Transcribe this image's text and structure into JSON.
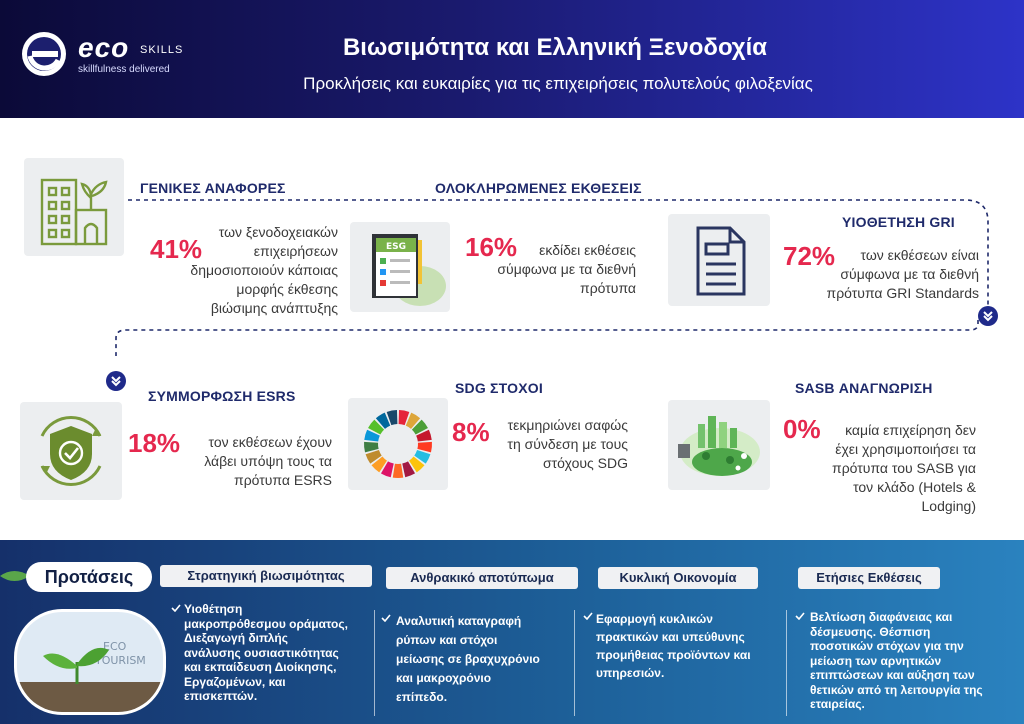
{
  "header": {
    "logo_eco": "eco",
    "logo_skills": "SKILLS",
    "logo_tag": "skillfulness delivered",
    "title": "Βιωσιμότητα και Ελληνική Ξενοδοχία",
    "subtitle": "Προκλήσεις και ευκαιρίες για τις επιχειρήσεις πολυτελούς φιλοξενίας"
  },
  "stats": {
    "general": {
      "title": "ΓΕΝΙΚΕΣ ΑΝΑΦΟΡΕΣ",
      "pct": "41%",
      "lines": [
        "των ξενοδοχειακών",
        "επιχειρήσεων",
        "δημοσιοποιούν κάποιας",
        "μορφής έκθεσης",
        "βιώσιμης ανάπτυξης"
      ],
      "icon": "building-plant-icon"
    },
    "complete": {
      "title": "ΟΛΟΚΛΗΡΩΜΕΝΕΣ ΕΚΘΕΣΕΙΣ",
      "pct": "16%",
      "lines": [
        "εκδίδει εκθέσεις",
        "σύμφωνα με τα διεθνή",
        "πρότυπα"
      ],
      "icon": "esg-report-icon",
      "icon_label": "ESG"
    },
    "gri": {
      "title": "ΥΙΟΘΕΤΗΣΗ GRI",
      "pct": "72%",
      "lines": [
        "των εκθέσεων είναι",
        "σύμφωνα με τα διεθνή",
        "πρότυπα GRI Standards"
      ],
      "icon": "document-icon"
    },
    "esrs": {
      "title": "ΣΥΜΜΟΡΦΩΣΗ ESRS",
      "pct": "18%",
      "lines": [
        "τον εκθέσεων έχουν",
        "λάβει υπόψη τους τα",
        "πρότυπα ESRS"
      ],
      "icon": "shield-check-icon"
    },
    "sdg": {
      "title": "SDG ΣΤΟΧΟΙ",
      "pct": "8%",
      "lines": [
        "τεκμηριώνει σαφώς",
        "τη σύνδεση με τους",
        "στόχους SDG"
      ],
      "icon": "sdg-wheel-icon"
    },
    "sasb": {
      "title": "SASB ΑΝΑΓΝΩΡΙΣΗ",
      "pct": "0%",
      "lines": [
        "καμία επιχείρηση δεν",
        "έχει χρησιμοποιήσει τα",
        "πρότυπα του SASB για",
        "τον κλάδο (Hotels &",
        "Lodging)"
      ],
      "icon": "green-city-bulb-icon"
    }
  },
  "recommendations": {
    "label": "Προτάσεις",
    "photo_text": [
      "ECO",
      "TOURISM"
    ],
    "columns": [
      {
        "title": "Στρατηγική βιωσιμότητας",
        "lines": [
          "Υιοθέτηση",
          "μακροπρόθεσμου οράματος,",
          "Διεξαγωγή  διπλής",
          "ανάλυσης ουσιαστικότητας",
          "και  εκπαίδευση Διοίκησης,",
          "Εργαζομένων, και",
          "επισκεπτών."
        ]
      },
      {
        "title": "Ανθρακικό αποτύπωμα",
        "lines": [
          "Αναλυτική καταγραφή",
          "ρύπων και στόχοι",
          "μείωσης σε βραχυχρόνιο",
          "και μακροχρόνιο",
          "επίπεδο."
        ]
      },
      {
        "title": "Κυκλική Οικονομία",
        "lines": [
          "Εφαρμογή κυκλικών",
          "πρακτικών και υπεύθυνης",
          "προμήθειας προϊόντων και",
          "υπηρεσιών."
        ]
      },
      {
        "title": "Ετήσιες Εκθέσεις",
        "lines": [
          "Βελτίωση  διαφάνειας και",
          "δέσμευσης. Θέσπιση",
          "ποσοτικών στόχων για την",
          "μείωση των αρνητικών",
          "επιπτώσεων και  αύξηση των",
          "θετικών από τη λειτουργία της",
          "εταιρείας."
        ]
      }
    ]
  },
  "colors": {
    "accent": "#e5284e",
    "navy": "#1f2a6b",
    "icon_green": "#7a9a3c"
  }
}
